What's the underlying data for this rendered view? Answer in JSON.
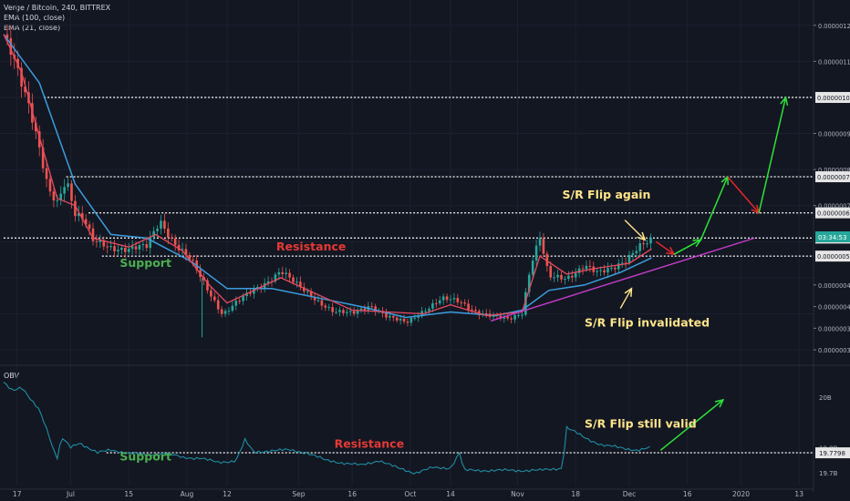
{
  "header": {
    "title": "Verge / Bitcoin, 240, BITTREX",
    "ema100": "EMA (100, close)",
    "ema21": "EMA (21, close)"
  },
  "obv_label": "OBV",
  "colors": {
    "background": "#131722",
    "ema100": "#3b9ddd",
    "ema21": "#e84a5f",
    "candle_up": "#26a69a",
    "candle_down": "#ef5350",
    "obv": "#1f8ea3",
    "arrow_up": "#2ee23a",
    "arrow_down": "#e8282b",
    "trendline": "#c43cc8",
    "label_yellow": "#ffe58a",
    "label_green": "#4caf50",
    "label_red": "#e53935",
    "price_tag": "#26a69a"
  },
  "chart_data": [
    {
      "type": "candlestick",
      "title": "Verge / Bitcoin, 240, BITTREX",
      "x_ticks": [
        "17",
        "Jul",
        "15",
        "Aug",
        "12",
        "Sep",
        "16",
        "Oct",
        "14",
        "Nov",
        "18",
        "Dec",
        "16",
        "2020",
        "13"
      ],
      "y_ticks": [
        "0.00000120",
        "0.00000110",
        "0.00000100",
        "0.00000090",
        "0.00000080",
        "0.00000078",
        "0.00000070",
        "0.00000068",
        "0.00000061",
        "0.00000056",
        "0.00000048",
        "0.00000042",
        "0.00000036",
        "0.00000030"
      ],
      "price_tag": "03:34:53",
      "ylim": [
        2.8e-07,
        1.25e-06
      ],
      "series": [
        {
          "name": "EMA (100, close)"
        },
        {
          "name": "EMA (21, close)"
        }
      ],
      "price_path": [
        [
          0,
          1.175e-06
        ],
        [
          2,
          1.13e-06
        ],
        [
          4,
          1.05e-06
        ],
        [
          6,
          9.6e-07
        ],
        [
          8,
          8.5e-07
        ],
        [
          10,
          7.4e-07
        ],
        [
          12,
          7.1e-07
        ],
        [
          14,
          7.8e-07
        ],
        [
          16,
          6.8e-07
        ],
        [
          18,
          6.6e-07
        ],
        [
          20,
          6e-07
        ],
        [
          24,
          5.85e-07
        ],
        [
          28,
          5.8e-07
        ],
        [
          32,
          5.85e-07
        ],
        [
          35,
          6.6e-07
        ],
        [
          38,
          6e-07
        ],
        [
          42,
          5.45e-07
        ],
        [
          46,
          4.6e-07
        ],
        [
          49,
          4e-07
        ],
        [
          52,
          4.3e-07
        ],
        [
          56,
          4.65e-07
        ],
        [
          59,
          4.9e-07
        ],
        [
          62,
          5.2e-07
        ],
        [
          66,
          4.75e-07
        ],
        [
          70,
          4.4e-07
        ],
        [
          74,
          4.05e-07
        ],
        [
          78,
          4e-07
        ],
        [
          82,
          4.25e-07
        ],
        [
          86,
          3.9e-07
        ],
        [
          90,
          3.75e-07
        ],
        [
          94,
          4.1e-07
        ],
        [
          98,
          4.4e-07
        ],
        [
          102,
          4.35e-07
        ],
        [
          106,
          4.05e-07
        ],
        [
          110,
          3.9e-07
        ],
        [
          113,
          3.85e-07
        ],
        [
          116,
          4.05e-07
        ],
        [
          118,
          5.4e-07
        ],
        [
          120,
          6.1e-07
        ],
        [
          122,
          5e-07
        ],
        [
          126,
          5e-07
        ],
        [
          130,
          5.35e-07
        ],
        [
          133,
          5.1e-07
        ],
        [
          136,
          5.25e-07
        ],
        [
          139,
          5.5e-07
        ],
        [
          142,
          5.85e-07
        ],
        [
          145,
          6e-07
        ]
      ],
      "ema100": [
        [
          0,
          1.175e-06
        ],
        [
          8,
          1.04e-06
        ],
        [
          16,
          7.6e-07
        ],
        [
          24,
          6.2e-07
        ],
        [
          32,
          6.1e-07
        ],
        [
          42,
          5.45e-07
        ],
        [
          50,
          4.7e-07
        ],
        [
          60,
          4.7e-07
        ],
        [
          70,
          4.45e-07
        ],
        [
          80,
          4.2e-07
        ],
        [
          90,
          3.9e-07
        ],
        [
          100,
          4.05e-07
        ],
        [
          110,
          3.95e-07
        ],
        [
          116,
          4.1e-07
        ],
        [
          122,
          4.65e-07
        ],
        [
          130,
          4.8e-07
        ],
        [
          138,
          5.15e-07
        ],
        [
          145,
          5.55e-07
        ]
      ],
      "ema21": [
        [
          0,
          1.175e-06
        ],
        [
          4,
          1.07e-06
        ],
        [
          8,
          8.9e-07
        ],
        [
          12,
          7.2e-07
        ],
        [
          16,
          7e-07
        ],
        [
          20,
          6.1e-07
        ],
        [
          28,
          5.85e-07
        ],
        [
          34,
          6.2e-07
        ],
        [
          40,
          5.75e-07
        ],
        [
          46,
          4.8e-07
        ],
        [
          50,
          4.3e-07
        ],
        [
          56,
          4.65e-07
        ],
        [
          62,
          5e-07
        ],
        [
          70,
          4.55e-07
        ],
        [
          78,
          4.1e-07
        ],
        [
          86,
          4.05e-07
        ],
        [
          94,
          4e-07
        ],
        [
          100,
          4.25e-07
        ],
        [
          108,
          3.95e-07
        ],
        [
          116,
          4.05e-07
        ],
        [
          120,
          5.6e-07
        ],
        [
          126,
          5.1e-07
        ],
        [
          132,
          5.25e-07
        ],
        [
          140,
          5.4e-07
        ],
        [
          145,
          5.8e-07
        ]
      ],
      "levels": [
        {
          "value": 1e-06,
          "label": "0.00000100",
          "x_start": 9
        },
        {
          "value": 7.8e-07,
          "label": "0.00000078",
          "x_start": 14
        },
        {
          "value": 6.8e-07,
          "label": "0.00000068",
          "x_start": 19
        },
        {
          "value": 6.1e-07,
          "label": "0.00000061",
          "x_start": 0
        },
        {
          "value": 5.6e-07,
          "label": "0.00000056",
          "x_start": 22
        }
      ],
      "trendline": [
        [
          109,
          3.8e-07
        ],
        [
          168,
          6.1e-07
        ]
      ],
      "projection_path": [
        [
          146,
          6e-07
        ],
        [
          150,
          5.65e-07
        ],
        [
          156,
          6.05e-07
        ],
        [
          162,
          7.8e-07
        ],
        [
          169,
          6.8e-07
        ],
        [
          175,
          1e-06
        ]
      ],
      "annotations": [
        {
          "text": "Support",
          "color": "label_green",
          "x": 26,
          "y": 5.3e-07
        },
        {
          "text": "Resistance",
          "color": "label_red",
          "x": 61,
          "y": 5.75e-07
        },
        {
          "text": "S/R Flip again",
          "color": "label_yellow",
          "x": 125,
          "y": 7.2e-07
        },
        {
          "text": "S/R Flip invalidated",
          "color": "label_yellow",
          "x": 130,
          "y": 3.65e-07
        }
      ]
    },
    {
      "type": "line",
      "title": "OBV",
      "y_ticks": [
        "20B",
        "19.8B",
        "19.7798",
        "19.7B"
      ],
      "ylim": [
        19.65,
        20.12
      ],
      "obv": [
        [
          0,
          20.06
        ],
        [
          2,
          20.03
        ],
        [
          4,
          20.04
        ],
        [
          6,
          19.99
        ],
        [
          8,
          19.95
        ],
        [
          10,
          19.86
        ],
        [
          11,
          19.8
        ],
        [
          12,
          19.76
        ],
        [
          13,
          19.84
        ],
        [
          15,
          19.8
        ],
        [
          17,
          19.82
        ],
        [
          19,
          19.8
        ],
        [
          21,
          19.78
        ],
        [
          24,
          19.79
        ],
        [
          28,
          19.78
        ],
        [
          32,
          19.77
        ],
        [
          36,
          19.78
        ],
        [
          40,
          19.76
        ],
        [
          44,
          19.76
        ],
        [
          48,
          19.74
        ],
        [
          52,
          19.75
        ],
        [
          54,
          19.83
        ],
        [
          56,
          19.78
        ],
        [
          60,
          19.79
        ],
        [
          64,
          19.79
        ],
        [
          68,
          19.78
        ],
        [
          72,
          19.75
        ],
        [
          76,
          19.74
        ],
        [
          80,
          19.73
        ],
        [
          84,
          19.75
        ],
        [
          88,
          19.72
        ],
        [
          92,
          19.7
        ],
        [
          96,
          19.72
        ],
        [
          100,
          19.72
        ],
        [
          102,
          19.78
        ],
        [
          103,
          19.71
        ],
        [
          108,
          19.71
        ],
        [
          114,
          19.71
        ],
        [
          120,
          19.71
        ],
        [
          125,
          19.72
        ],
        [
          126,
          19.88
        ],
        [
          130,
          19.84
        ],
        [
          134,
          19.81
        ],
        [
          138,
          19.8
        ],
        [
          142,
          19.79
        ],
        [
          145,
          19.8
        ]
      ],
      "levels": [
        {
          "value": 19.7798,
          "label": "19.7798",
          "x_start": 23
        }
      ],
      "projection_path": [
        [
          147,
          19.79
        ],
        [
          161,
          19.99
        ]
      ],
      "annotations": [
        {
          "text": "Support",
          "color": "label_green",
          "x": 26,
          "y": 19.75
        },
        {
          "text": "Resistance",
          "color": "label_red",
          "x": 74,
          "y": 19.8
        },
        {
          "text": "S/R Flip still valid",
          "color": "label_yellow",
          "x": 130,
          "y": 19.88
        }
      ]
    }
  ]
}
